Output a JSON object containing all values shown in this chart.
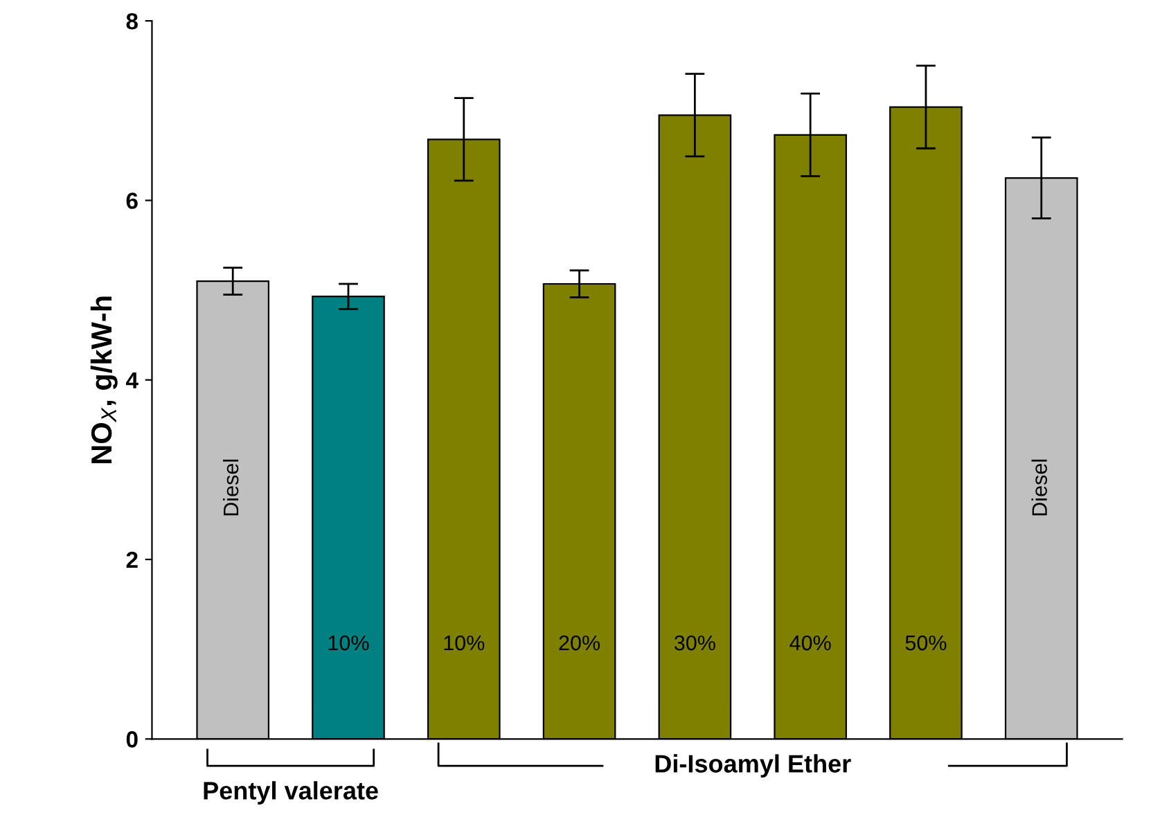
{
  "chart_data": {
    "type": "bar",
    "ylabel": "NO$_{X}$, g/kW-h",
    "categories": [
      "Diesel",
      "10%",
      "10%",
      "20%",
      "30%",
      "40%",
      "50%",
      "Diesel"
    ],
    "values": [
      5.1,
      4.93,
      6.68,
      5.07,
      6.95,
      6.73,
      7.04,
      6.25
    ],
    "errors": [
      0.15,
      0.14,
      0.46,
      0.15,
      0.46,
      0.46,
      0.46,
      0.45
    ],
    "colors": [
      "#c0c0c0",
      "#008080",
      "#808000",
      "#808000",
      "#808000",
      "#808000",
      "#808000",
      "#c0c0c0"
    ],
    "ylim": [
      0,
      8
    ],
    "yticks": [
      0,
      2,
      4,
      6,
      8
    ],
    "grid": false,
    "annotations": [
      "Pentyl valerate",
      "Di-Isoamyl Ether"
    ]
  }
}
